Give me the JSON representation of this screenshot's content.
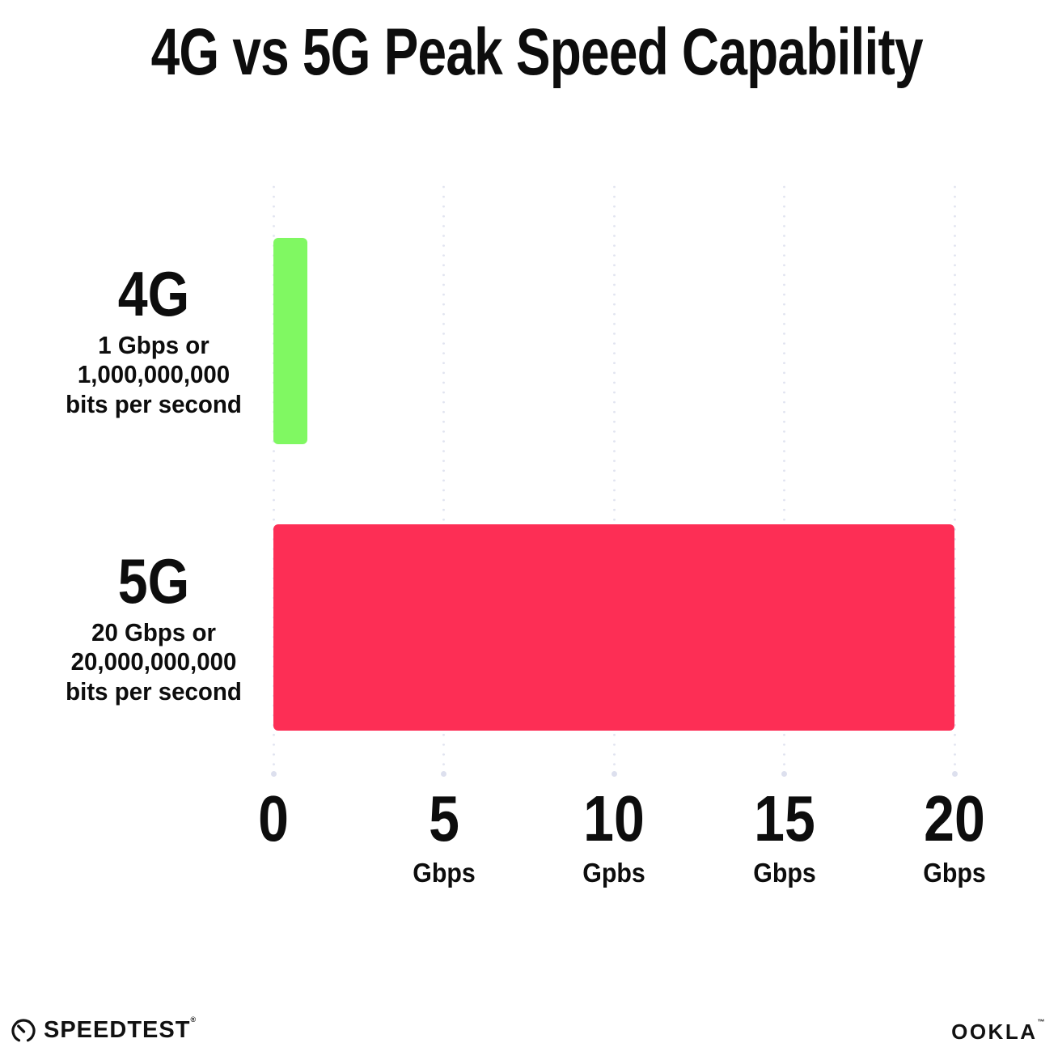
{
  "title": "4G vs 5G Peak Speed Capability",
  "chart_data": {
    "type": "bar",
    "orientation": "horizontal",
    "title": "4G vs 5G Peak Speed Capability",
    "categories": [
      "4G",
      "5G"
    ],
    "values": [
      1,
      20
    ],
    "value_unit": "Gbps",
    "xlim": [
      0,
      20
    ],
    "grid": "dotted-vertical-gridlines",
    "legend": "none",
    "ticks": [
      {
        "value": 0,
        "label": "0",
        "unit": ""
      },
      {
        "value": 5,
        "label": "5",
        "unit": "Gbps"
      },
      {
        "value": 10,
        "label": "10",
        "unit": "Gpbs"
      },
      {
        "value": 15,
        "label": "15",
        "unit": "Gbps"
      },
      {
        "value": 20,
        "label": "20",
        "unit": "Gbps"
      }
    ],
    "bar_colors": [
      "#80F862",
      "#FD2E55"
    ]
  },
  "rows": [
    {
      "label": "4G",
      "desc_line1": "1 Gbps or",
      "desc_line2": "1,000,000,000",
      "desc_line3": "bits per second"
    },
    {
      "label": "5G",
      "desc_line1": "20 Gbps or",
      "desc_line2": "20,000,000,000",
      "desc_line3": "bits per second"
    }
  ],
  "footer": {
    "speedtest_label": "SPEEDTEST",
    "speedtest_mark": "®",
    "speedtest_icon": "speedtest-gauge",
    "ookla_label": "OOKLA",
    "ookla_mark": "™"
  },
  "colors": {
    "background": "#FFFFFF",
    "text": "#0D0D0D",
    "gridline": "#E1E4F0",
    "bar_4g": "#80F862",
    "bar_5g": "#FD2E55"
  }
}
